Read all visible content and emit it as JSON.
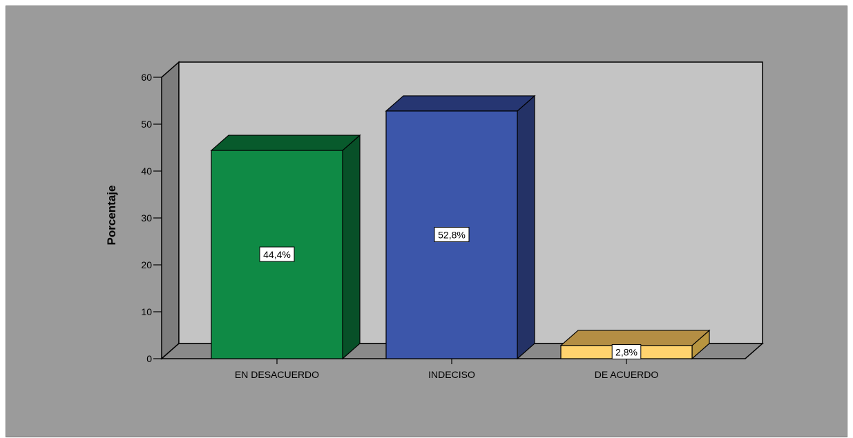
{
  "chart_data": {
    "type": "bar",
    "title": "",
    "xlabel": "",
    "ylabel": "Porcentaje",
    "ylim": [
      0,
      60
    ],
    "yticks": [
      0,
      10,
      20,
      30,
      40,
      50,
      60
    ],
    "grid": false,
    "three_d": true,
    "categories": [
      "EN DESACUERDO",
      "INDECISO",
      "DE ACUERDO"
    ],
    "values": [
      44.4,
      52.8,
      2.8
    ],
    "data_labels": [
      "44,4%",
      "52,8%",
      "2,8%"
    ],
    "colors": [
      "#0f8a45",
      "#3c56aa",
      "#ffd36e"
    ],
    "side_colors": [
      "#085028",
      "#243266",
      "#b89540"
    ],
    "top_colors": [
      "#085a2c",
      "#263672",
      "#b48e44"
    ],
    "background_colors": {
      "outer": "#9b9b9b",
      "back_wall": "#c4c4c4",
      "side_wall": "#7d7d7d",
      "floor": "#8a8a8a"
    }
  }
}
